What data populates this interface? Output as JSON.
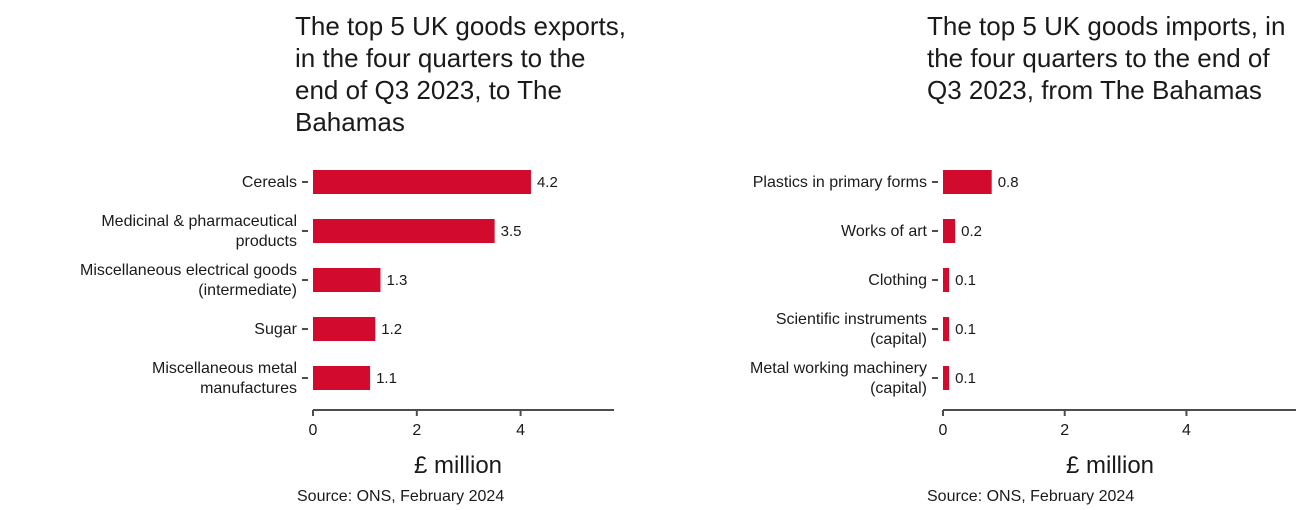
{
  "colors": {
    "bar": "#d20a2d",
    "axis": "#4d4d4d",
    "text": "#1a1a1a"
  },
  "chart_data": [
    {
      "type": "bar",
      "orientation": "horizontal",
      "title": "The top 5 UK goods exports, in the four quarters to the end of Q3 2023, to The Bahamas",
      "categories": [
        "Cereals",
        "Medicinal & pharmaceutical products",
        "Miscellaneous electrical goods (intermediate)",
        "Sugar",
        "Miscellaneous metal manufactures"
      ],
      "values": [
        4.2,
        3.5,
        1.3,
        1.2,
        1.1
      ],
      "value_labels": [
        "4.2",
        "3.5",
        "1.3",
        "1.2",
        "1.1"
      ],
      "xlabel": "£ million",
      "xlim": [
        0,
        5.8
      ],
      "xticks": [
        0,
        2,
        4
      ],
      "xtick_labels": [
        "0",
        "2",
        "4"
      ],
      "grid": false,
      "source": "Source: ONS, February 2024"
    },
    {
      "type": "bar",
      "orientation": "horizontal",
      "title": "The top 5 UK goods imports, in the four quarters to the end of Q3 2023, from The Bahamas",
      "categories": [
        "Plastics in primary forms",
        "Works of art",
        "Clothing",
        "Scientific instruments (capital)",
        "Metal working machinery (capital)"
      ],
      "values": [
        0.8,
        0.2,
        0.1,
        0.1,
        0.1
      ],
      "value_labels": [
        "0.8",
        "0.2",
        "0.1",
        "0.1",
        "0.1"
      ],
      "xlabel": "£ million",
      "xlim": [
        0,
        5.8
      ],
      "xticks": [
        0,
        2,
        4
      ],
      "xtick_labels": [
        "0",
        "2",
        "4"
      ],
      "grid": false,
      "source": "Source: ONS, February 2024"
    }
  ]
}
